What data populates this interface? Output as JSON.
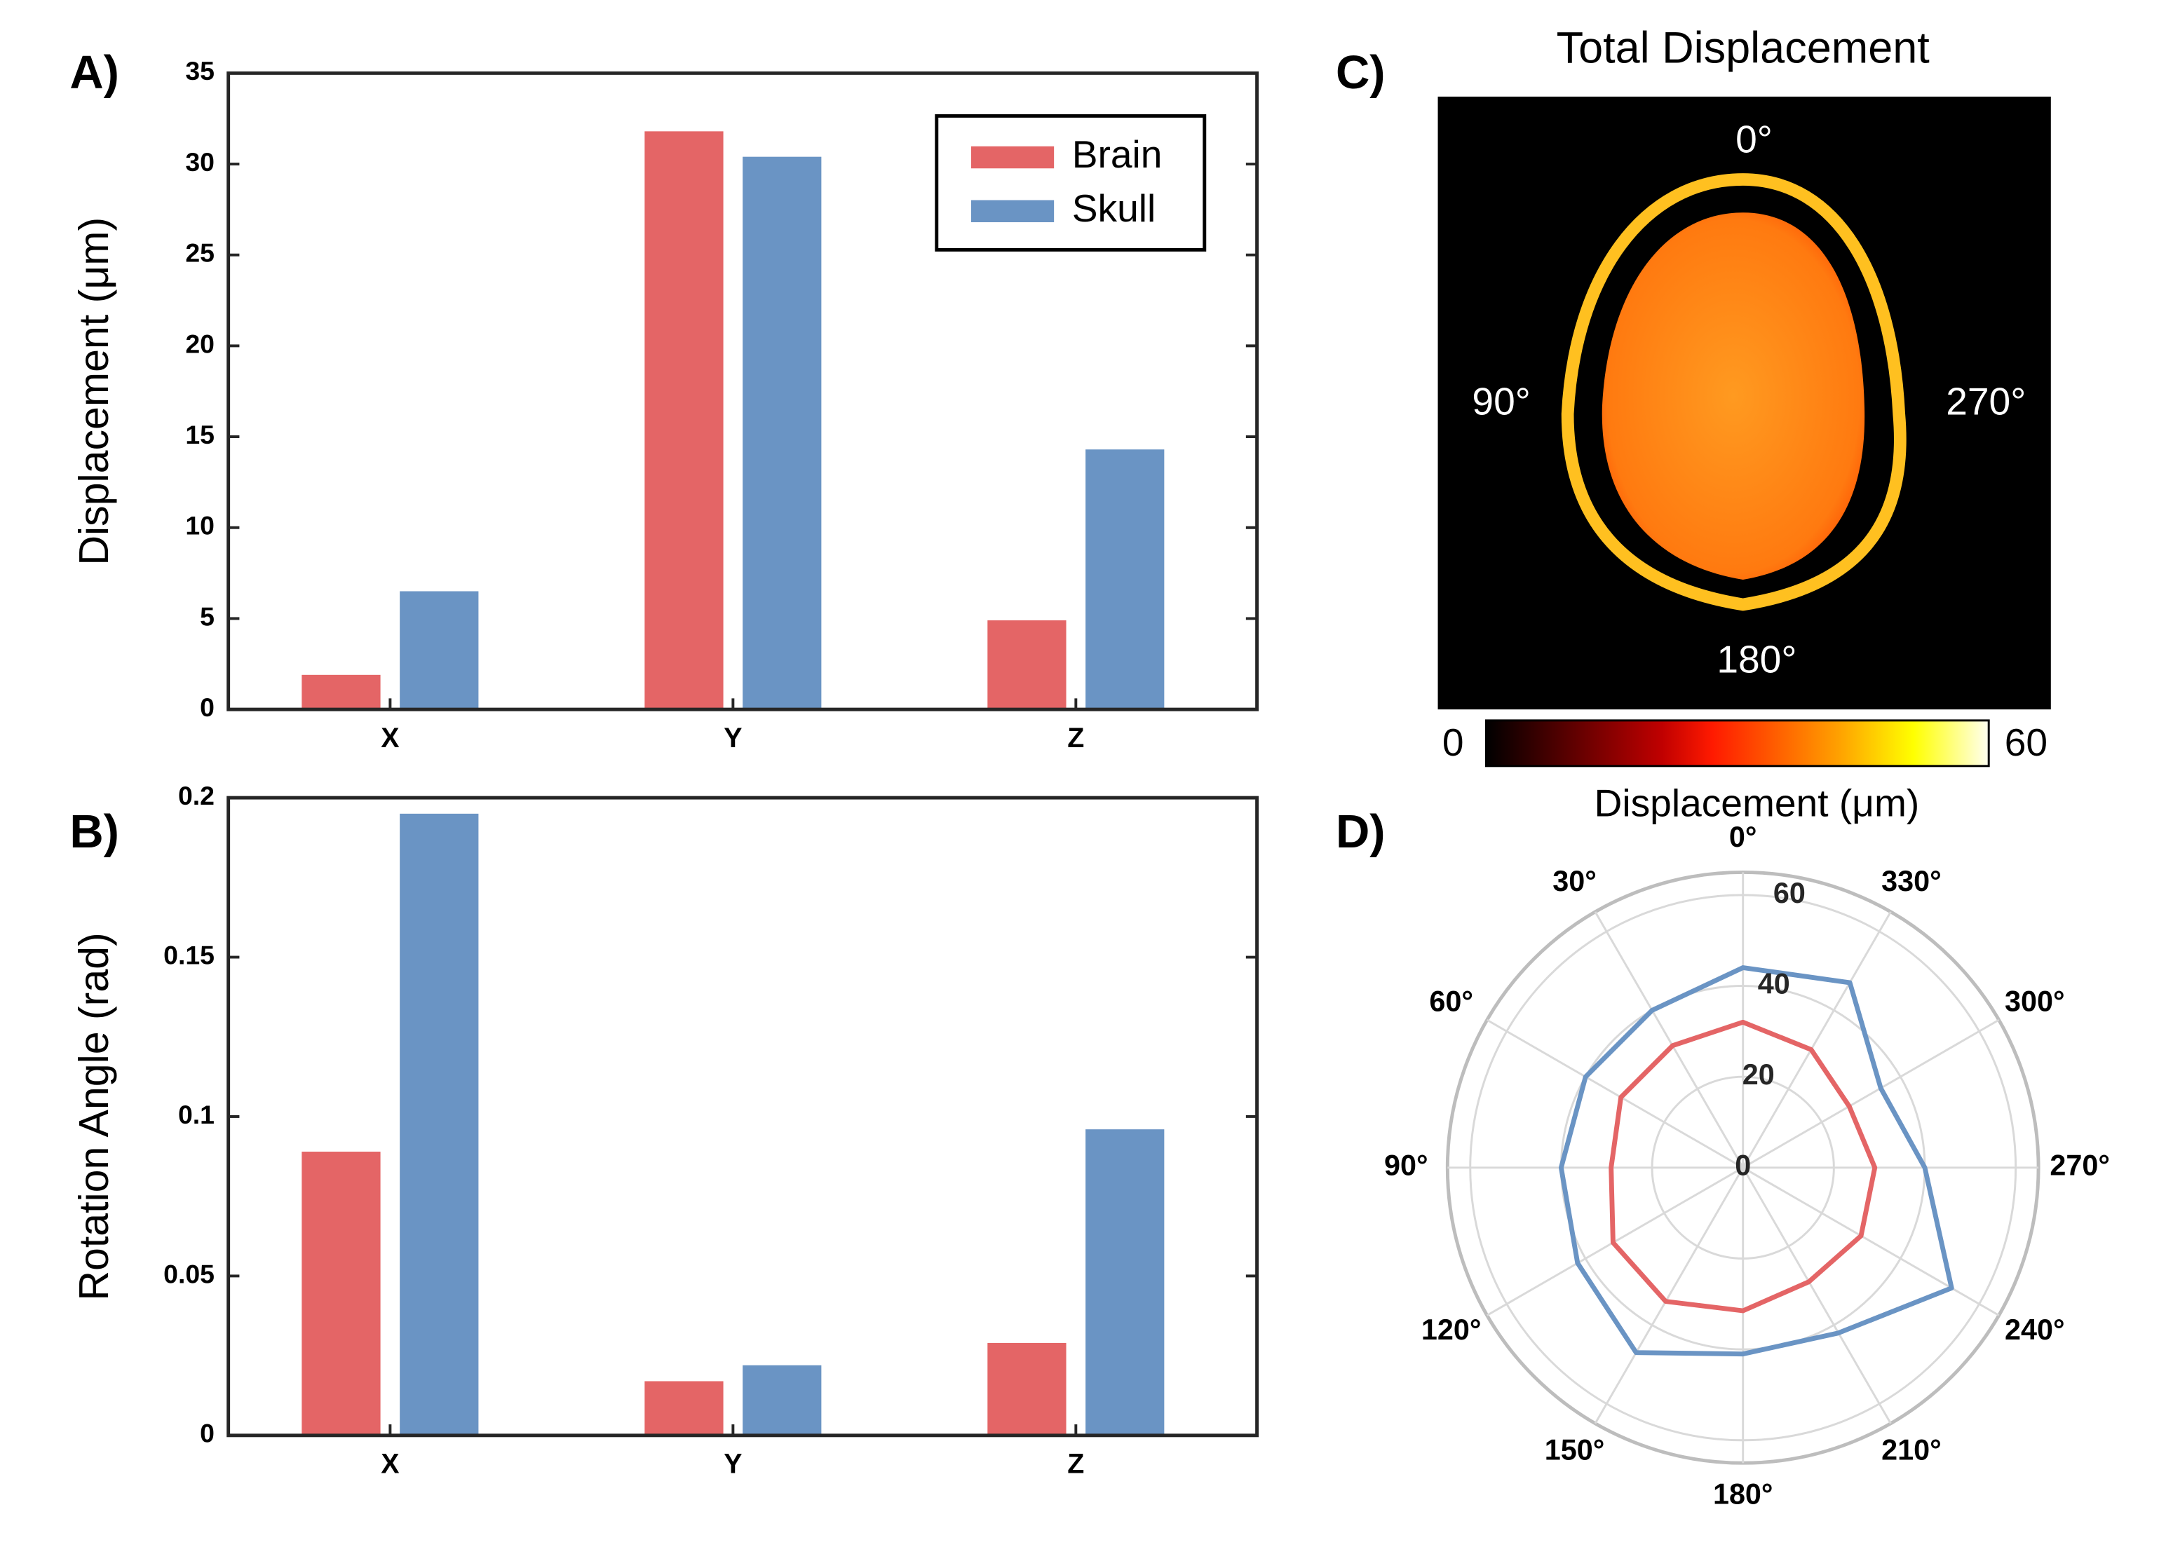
{
  "chart_data": [
    {
      "type": "bar",
      "panel": "A)",
      "ylabel": "Displacement (μm)",
      "categories": [
        "X",
        "Y",
        "Z"
      ],
      "series": [
        {
          "name": "Brain",
          "color": "#e46566",
          "values": [
            1.9,
            31.8,
            4.9
          ]
        },
        {
          "name": "Skull",
          "color": "#6a94c4",
          "values": [
            6.5,
            30.4,
            14.3
          ]
        }
      ],
      "ylim": [
        0,
        35
      ],
      "yticks": [
        0,
        5,
        10,
        15,
        20,
        25,
        30,
        35
      ],
      "legend": "upper right"
    },
    {
      "type": "bar",
      "panel": "B)",
      "ylabel": "Rotation Angle (rad)",
      "categories": [
        "X",
        "Y",
        "Z"
      ],
      "series": [
        {
          "color": "#e46566",
          "values": [
            0.089,
            0.017,
            0.029
          ]
        },
        {
          "color": "#6a94c4",
          "values": [
            0.195,
            0.022,
            0.096
          ]
        }
      ],
      "ylim": [
        0,
        0.2
      ],
      "yticks": [
        0,
        0.05,
        0.1,
        0.15,
        0.2
      ]
    },
    {
      "type": "heatmap",
      "panel": "C)",
      "title": "Total Displacement",
      "angle_labels": [
        "0°",
        "90°",
        "180°",
        "270°"
      ],
      "clim": [
        0,
        60
      ],
      "colorbar_label": "Displacement (μm)"
    },
    {
      "type": "polar",
      "panel": "D)",
      "thetaticks": [
        {
          "value": 0,
          "label": "0°"
        },
        {
          "value": 30,
          "label": "30°"
        },
        {
          "value": 60,
          "label": "60°"
        },
        {
          "value": 90,
          "label": "90°"
        },
        {
          "value": 120,
          "label": "120°"
        },
        {
          "value": 150,
          "label": "150°"
        },
        {
          "value": 180,
          "label": "180°"
        },
        {
          "value": 210,
          "label": "210°"
        },
        {
          "value": 240,
          "label": "240°"
        },
        {
          "value": 270,
          "label": "270°"
        },
        {
          "value": 300,
          "label": "300°"
        },
        {
          "value": 330,
          "label": "330°"
        }
      ],
      "rlim": [
        0,
        65
      ],
      "rticks": [
        0,
        20,
        40,
        60
      ],
      "series": [
        {
          "color": "#6a94c4",
          "theta": [
            0,
            30,
            60,
            90,
            120,
            150,
            180,
            210,
            240,
            270,
            300,
            330
          ],
          "values": [
            44,
            40,
            40,
            40,
            42,
            47,
            41,
            42,
            53,
            40,
            35,
            47
          ]
        },
        {
          "color": "#e46566",
          "theta": [
            0,
            30,
            60,
            90,
            120,
            150,
            180,
            210,
            240,
            270,
            300,
            330
          ],
          "values": [
            32,
            31,
            31,
            29,
            33,
            34,
            31.5,
            29,
            30,
            29,
            27,
            30
          ]
        }
      ]
    }
  ]
}
